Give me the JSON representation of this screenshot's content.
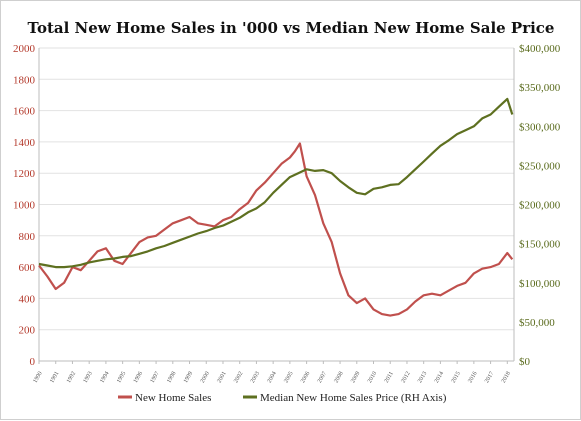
{
  "chart_data": {
    "type": "line",
    "title": "Total New Home Sales in '000 vs Median New Home Sale Price",
    "x": [
      1990,
      1991,
      1992,
      1993,
      1994,
      1995,
      1996,
      1997,
      1998,
      1999,
      2000,
      2001,
      2002,
      2003,
      2004,
      2005,
      2006,
      2007,
      2008,
      2009,
      2010,
      2011,
      2012,
      2013,
      2014,
      2015,
      2016,
      2017,
      2018
    ],
    "x_tick_labels": [
      "1990",
      "1991",
      "1992",
      "1993",
      "1994",
      "1995",
      "1996",
      "1997",
      "1998",
      "1999",
      "2000",
      "2001",
      "2002",
      "2003",
      "2004",
      "2005",
      "2006",
      "2007",
      "2008",
      "2009",
      "2010",
      "2011",
      "2012",
      "2013",
      "2014",
      "2015",
      "2016",
      "2017",
      "2018"
    ],
    "xlim": [
      1990,
      2018.4
    ],
    "left_axis": {
      "ylim": [
        0,
        2000
      ],
      "ticks": [
        0,
        200,
        400,
        600,
        800,
        1000,
        1200,
        1400,
        1600,
        1800,
        2000
      ],
      "tick_labels": [
        "0",
        "200",
        "400",
        "600",
        "800",
        "1000",
        "1200",
        "1400",
        "1600",
        "1800",
        "2000"
      ],
      "color": "#b43a2c"
    },
    "right_axis": {
      "ylim": [
        0,
        400000
      ],
      "ticks": [
        0,
        50000,
        100000,
        150000,
        200000,
        250000,
        300000,
        350000,
        400000
      ],
      "tick_labels": [
        "$0",
        "$50,000",
        "$100,000",
        "$150,000",
        "$200,000",
        "$250,000",
        "$300,000",
        "$350,000",
        "$400,000"
      ],
      "color": "#5a6b1d"
    },
    "grid": true,
    "legend_position": "bottom",
    "series": [
      {
        "name": "New Home Sales",
        "axis": "left",
        "color": "#c0504d",
        "x": [
          1990,
          1990.5,
          1991,
          1991.5,
          1992,
          1992.5,
          1993,
          1993.5,
          1994,
          1994.5,
          1995,
          1995.5,
          1996,
          1996.5,
          1997,
          1997.5,
          1998,
          1998.5,
          1999,
          1999.5,
          2000,
          2000.5,
          2001,
          2001.5,
          2002,
          2002.5,
          2003,
          2003.5,
          2004,
          2004.5,
          2005,
          2005.3,
          2005.6,
          2006,
          2006.5,
          2007,
          2007.5,
          2008,
          2008.5,
          2009,
          2009.5,
          2010,
          2010.5,
          2011,
          2011.5,
          2012,
          2012.5,
          2013,
          2013.5,
          2014,
          2014.5,
          2015,
          2015.5,
          2016,
          2016.5,
          2017,
          2017.5,
          2018,
          2018.3
        ],
        "values": [
          610,
          540,
          460,
          500,
          600,
          580,
          640,
          700,
          720,
          640,
          620,
          690,
          760,
          790,
          800,
          840,
          880,
          900,
          920,
          880,
          870,
          860,
          900,
          920,
          970,
          1010,
          1090,
          1140,
          1200,
          1260,
          1300,
          1340,
          1390,
          1180,
          1060,
          880,
          760,
          560,
          420,
          370,
          400,
          330,
          300,
          290,
          300,
          330,
          380,
          420,
          430,
          420,
          450,
          480,
          500,
          560,
          590,
          600,
          620,
          690,
          650
        ]
      },
      {
        "name": "Median New Home Sales Price (RH Axis)",
        "axis": "right",
        "color": "#5e7020",
        "x": [
          1990,
          1990.5,
          1991,
          1991.5,
          1992,
          1992.5,
          1993,
          1993.5,
          1994,
          1994.5,
          1995,
          1995.5,
          1996,
          1996.5,
          1997,
          1997.5,
          1998,
          1998.5,
          1999,
          1999.5,
          2000,
          2000.5,
          2001,
          2001.5,
          2002,
          2002.5,
          2003,
          2003.5,
          2004,
          2004.5,
          2005,
          2005.5,
          2006,
          2006.5,
          2007,
          2007.5,
          2008,
          2008.5,
          2009,
          2009.5,
          2010,
          2010.5,
          2011,
          2011.5,
          2012,
          2012.5,
          2013,
          2013.5,
          2014,
          2014.5,
          2015,
          2015.5,
          2016,
          2016.5,
          2017,
          2017.5,
          2018,
          2018.3
        ],
        "values": [
          124000,
          122000,
          120000,
          120000,
          121000,
          123000,
          126000,
          128000,
          130000,
          131000,
          133000,
          134000,
          137000,
          140000,
          144000,
          147000,
          151000,
          155000,
          159000,
          163000,
          166000,
          170000,
          173000,
          178000,
          183000,
          190000,
          195000,
          203000,
          215000,
          225000,
          235000,
          240000,
          245000,
          243000,
          244000,
          240000,
          230000,
          222000,
          215000,
          213000,
          220000,
          222000,
          225000,
          226000,
          235000,
          245000,
          255000,
          265000,
          275000,
          282000,
          290000,
          295000,
          300000,
          310000,
          315000,
          325000,
          335000,
          315000
        ]
      }
    ]
  }
}
